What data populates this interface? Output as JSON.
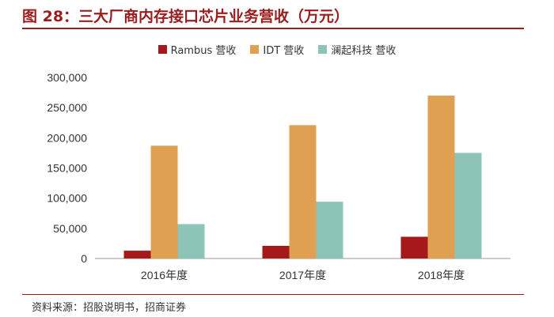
{
  "figure": {
    "title": "图 28：三大厂商内存接口芯片业务营收（万元）",
    "source": "资料来源：招股说明书，招商证券"
  },
  "colors": {
    "accent": "#9b1c1c",
    "series": [
      "#a5191b",
      "#e0a052",
      "#8cc5b8"
    ]
  },
  "chart_data": {
    "type": "bar",
    "categories": [
      "2016年度",
      "2017年度",
      "2018年度"
    ],
    "series": [
      {
        "name": "Rambus 营收",
        "values": [
          13000,
          21000,
          36000
        ]
      },
      {
        "name": "IDT 营收",
        "values": [
          187000,
          221000,
          270000
        ]
      },
      {
        "name": "澜起科技 营收",
        "values": [
          57000,
          94000,
          175000
        ]
      }
    ],
    "ylim": [
      0,
      300000
    ],
    "yticks": [
      "0",
      "50,000",
      "100,000",
      "150,000",
      "200,000",
      "250,000",
      "300,000"
    ],
    "ytick_values": [
      0,
      50000,
      100000,
      150000,
      200000,
      250000,
      300000
    ],
    "grid": false,
    "legend": "top-center"
  }
}
